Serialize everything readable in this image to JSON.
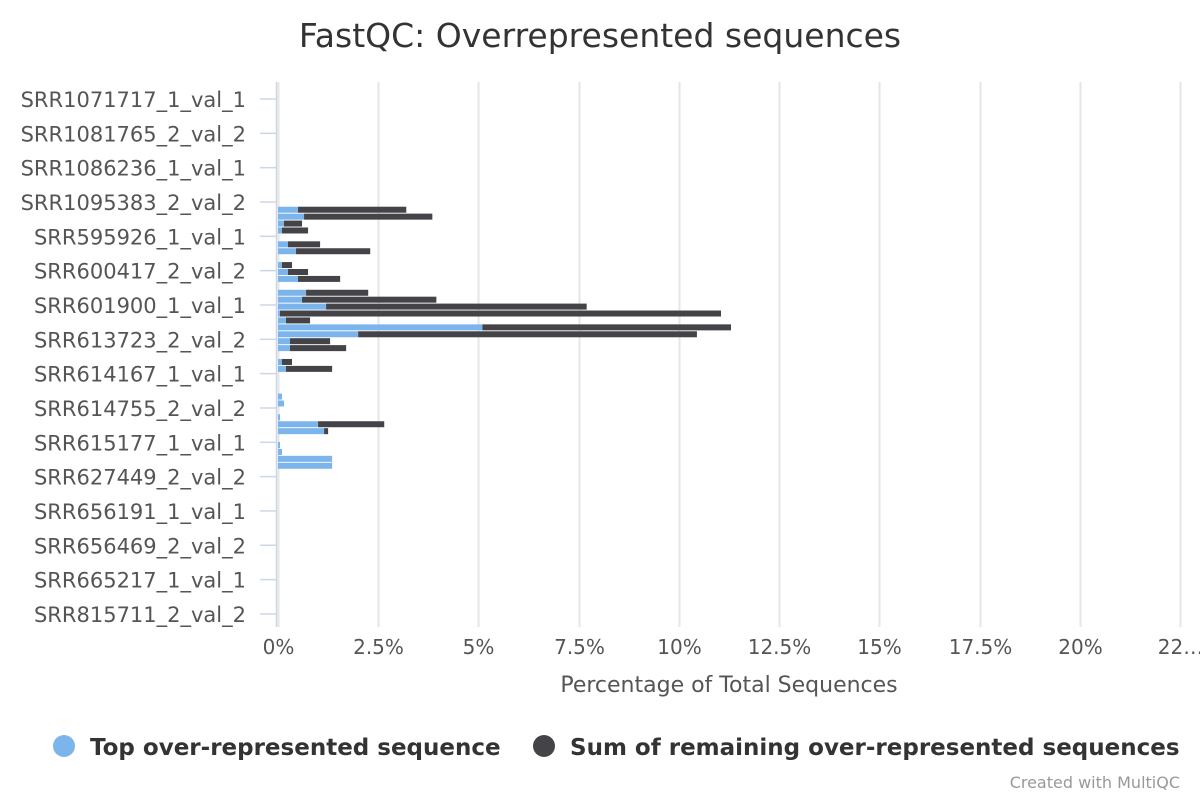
{
  "title": "FastQC: Overrepresented sequences",
  "credits": "Created with MultiQC",
  "colors": {
    "top": "#7cb5ec",
    "rest": "#434348",
    "grid": "#e6e6e6",
    "axis": "#ccd6eb"
  },
  "chart_data": {
    "type": "bar",
    "orientation": "horizontal",
    "stacking": "normal",
    "title": "FastQC: Overrepresented sequences",
    "xlabel": "Percentage of Total Sequences",
    "xlim": [
      0,
      22.5
    ],
    "tick_labels": [
      "0%",
      "2.5%",
      "5%",
      "7.5%",
      "10%",
      "12.5%",
      "15%",
      "17.5%",
      "20%",
      "22…"
    ],
    "grid": true,
    "legend_position": "bottom",
    "labelled_categories": [
      "SRR1071717_1_val_1",
      "SRR1081765_2_val_2",
      "SRR1086236_1_val_1",
      "SRR1095383_2_val_2",
      "SRR595926_1_val_1",
      "SRR600417_2_val_2",
      "SRR601900_1_val_1",
      "SRR613723_2_val_2",
      "SRR614167_1_val_1",
      "SRR614755_2_val_2",
      "SRR615177_1_val_1",
      "SRR627449_2_val_2",
      "SRR656191_1_val_1",
      "SRR656469_2_val_2",
      "SRR665217_1_val_1",
      "SRR815711_2_val_2"
    ],
    "series": [
      {
        "name": "Top over-represented sequence",
        "values": [
          0,
          0,
          0,
          0,
          0,
          0,
          0,
          0,
          0,
          0,
          0,
          0,
          0,
          0,
          0,
          0,
          0.5,
          0.65,
          0.15,
          0.1,
          0,
          0.25,
          0.45,
          0,
          0.1,
          0.25,
          0.5,
          0,
          0.7,
          0.6,
          1.2,
          0.05,
          0.2,
          5.1,
          2.0,
          0.3,
          0.3,
          0,
          0.1,
          0.2,
          0,
          0,
          0,
          0.1,
          0.15,
          0,
          0.05,
          1.0,
          1.15,
          0,
          0.05,
          0.1,
          1.35,
          1.35,
          0
        ]
      },
      {
        "name": "Sum of remaining over-represented sequences",
        "values": [
          0,
          0,
          0,
          0,
          0,
          0,
          0,
          0,
          0,
          0,
          0,
          0,
          0,
          0,
          0,
          0,
          2.7,
          3.2,
          0.45,
          0.65,
          0,
          0.8,
          1.85,
          0,
          0.25,
          0.5,
          1.05,
          0,
          1.55,
          3.35,
          6.5,
          11.0,
          0.6,
          6.2,
          8.45,
          1.0,
          1.4,
          0,
          0.25,
          1.15,
          0,
          0,
          0,
          0,
          0,
          0,
          0,
          1.65,
          0.1,
          0,
          0,
          0,
          0,
          0,
          0
        ]
      }
    ]
  }
}
